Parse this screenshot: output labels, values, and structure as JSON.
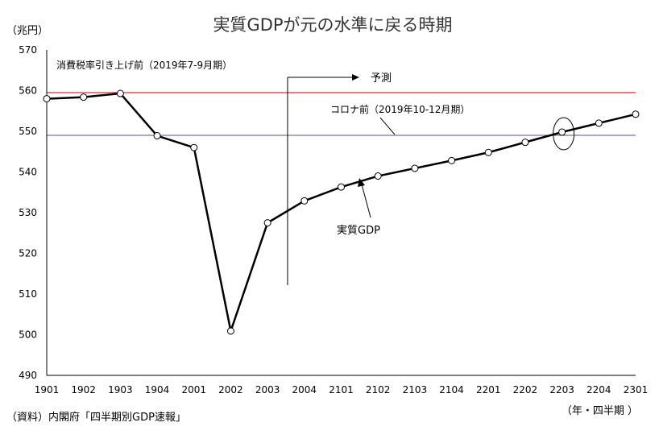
{
  "chart_data": {
    "type": "line",
    "title": "実質GDPが元の水準に戻る時期",
    "y_unit": "（兆円）",
    "x_unit": "（年・四半期 ）",
    "source": "（資料）内閣府「四半期別GDP速報」",
    "categories": [
      "1901",
      "1902",
      "1903",
      "1904",
      "2001",
      "2002",
      "2003",
      "2004",
      "2101",
      "2102",
      "2103",
      "2104",
      "2201",
      "2202",
      "2203",
      "2204",
      "2301"
    ],
    "series": [
      {
        "name": "実質GDP",
        "values": [
          558.0,
          558.4,
          559.3,
          548.9,
          546.0,
          500.9,
          527.5,
          532.9,
          536.3,
          539.0,
          540.9,
          542.8,
          544.8,
          547.3,
          549.8,
          552.0,
          554.2
        ]
      }
    ],
    "y_ticks": [
      490,
      500,
      510,
      520,
      530,
      540,
      550,
      560,
      570
    ],
    "ylim": [
      490,
      570
    ],
    "grid": false,
    "reference_lines": [
      {
        "label": "消費税率引き上げ前（2019年7-9月期）",
        "value": 559.5,
        "color": "#cc0000"
      },
      {
        "label": "コロナ前（2019年10-12月期）",
        "value": 549.0,
        "color": "#5a4fa0"
      }
    ],
    "forecast": {
      "label": "予測",
      "start_after_index": 6
    },
    "highlight_index": 14
  }
}
